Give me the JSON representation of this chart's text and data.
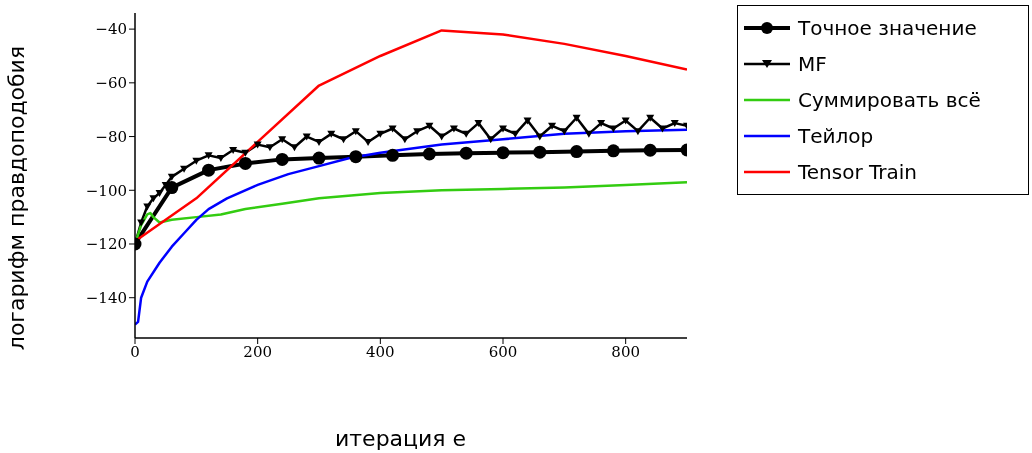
{
  "chart_data": {
    "type": "line",
    "xlabel": "итерация e",
    "ylabel": "логарифм правдоподобия",
    "xlim": [
      0,
      900
    ],
    "ylim": [
      -155,
      -34
    ],
    "xticks": [
      0,
      200,
      400,
      600,
      800
    ],
    "yticks": [
      {
        "value": -140,
        "label": "−140"
      },
      {
        "value": -120,
        "label": "−120"
      },
      {
        "value": -100,
        "label": "−100"
      },
      {
        "value": -80,
        "label": "−80"
      },
      {
        "value": -60,
        "label": "−60"
      },
      {
        "value": -40,
        "label": "−40"
      }
    ],
    "legend": "right",
    "series": [
      {
        "name": "Точное значение",
        "color": "#000000",
        "marker": "circle",
        "x": [
          0,
          60,
          120,
          180,
          240,
          300,
          360,
          420,
          480,
          540,
          600,
          660,
          720,
          780,
          840,
          900
        ],
        "values": [
          -120,
          -99,
          -92.5,
          -90,
          -88.5,
          -88,
          -87.5,
          -87,
          -86.5,
          -86.2,
          -86,
          -85.8,
          -85.6,
          -85.3,
          -85.1,
          -85
        ]
      },
      {
        "name": "MF",
        "color": "#000000",
        "marker": "triangle",
        "x": [
          0,
          10,
          20,
          30,
          40,
          50,
          60,
          80,
          100,
          120,
          140,
          160,
          180,
          200,
          220,
          240,
          260,
          280,
          300,
          320,
          340,
          360,
          380,
          400,
          420,
          440,
          460,
          480,
          500,
          520,
          540,
          560,
          580,
          600,
          620,
          640,
          660,
          680,
          700,
          720,
          740,
          760,
          780,
          800,
          820,
          840,
          860,
          880,
          900
        ],
        "values": [
          -120,
          -112,
          -106,
          -103,
          -101,
          -98,
          -95,
          -92,
          -89,
          -87,
          -88,
          -85,
          -86,
          -83,
          -84,
          -81,
          -84,
          -80,
          -82,
          -79,
          -81,
          -78,
          -82,
          -79,
          -77,
          -81,
          -78,
          -76,
          -80,
          -77,
          -79,
          -75,
          -81,
          -77,
          -79,
          -74,
          -80,
          -76,
          -78,
          -73,
          -79,
          -75,
          -77,
          -74,
          -78,
          -73,
          -77,
          -75,
          -76
        ]
      },
      {
        "name": "Суммировать всё",
        "color": "#33cc11",
        "marker": "none",
        "x": [
          0,
          10,
          20,
          25,
          30,
          40,
          60,
          100,
          140,
          180,
          240,
          300,
          400,
          500,
          600,
          700,
          800,
          900
        ],
        "values": [
          -120,
          -113,
          -109,
          -108.5,
          -110,
          -112,
          -111,
          -110,
          -109,
          -107,
          -105,
          -103,
          -101,
          -100,
          -99.5,
          -99,
          -98,
          -97
        ]
      },
      {
        "name": "Тейлор",
        "color": "#0000ff",
        "marker": "none",
        "x": [
          0,
          5,
          10,
          20,
          40,
          60,
          80,
          100,
          120,
          150,
          200,
          250,
          300,
          350,
          400,
          500,
          600,
          700,
          800,
          900
        ],
        "values": [
          -150,
          -149,
          -140,
          -134,
          -127,
          -121,
          -116,
          -111,
          -107,
          -103,
          -98,
          -94,
          -91,
          -88,
          -86,
          -83,
          -81,
          -79,
          -78,
          -77.5
        ]
      },
      {
        "name": "Tensor Train",
        "color": "#ff0000",
        "marker": "none",
        "x": [
          0,
          100,
          200,
          300,
          400,
          500,
          600,
          700,
          800,
          900
        ],
        "values": [
          -119,
          -103,
          -82,
          -61,
          -50,
          -40.5,
          -42,
          -45.5,
          -50,
          -55
        ]
      }
    ]
  }
}
